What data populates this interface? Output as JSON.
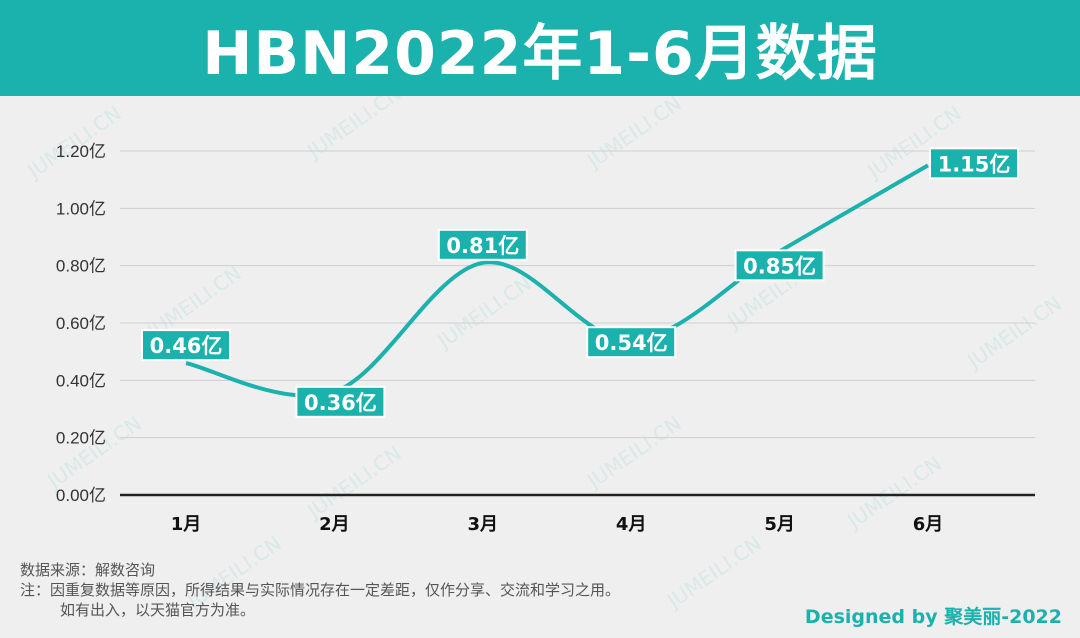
{
  "header": {
    "title": "HBN2022年1-6月数据"
  },
  "colors": {
    "accent": "#1bb1ad",
    "background": "#efefef",
    "axis": "#222222",
    "grid": "#cfcfcf"
  },
  "chart_data": {
    "type": "line",
    "title": "HBN2022年1-6月数据",
    "categories": [
      "1月",
      "2月",
      "3月",
      "4月",
      "5月",
      "6月"
    ],
    "series": [
      {
        "values": [
          0.46,
          0.36,
          0.81,
          0.54,
          0.85,
          1.15
        ]
      }
    ],
    "data_labels": [
      "0.46亿",
      "0.36亿",
      "0.81亿",
      "0.54亿",
      "0.85亿",
      "1.15亿"
    ],
    "y_ticks": [
      "0.00亿",
      "0.20亿",
      "0.40亿",
      "0.60亿",
      "0.80亿",
      "1.00亿",
      "1.20亿"
    ],
    "ylim": [
      0,
      1.2
    ],
    "xlabel": "",
    "ylabel": "",
    "grid": true,
    "smooth": true
  },
  "footer": {
    "source": "数据来源：解数咨询",
    "note_line1": "注：因重复数据等原因，所得结果与实际情况存在一定差距，仅作分享、交流和学习之用。",
    "note_line2": "如有出入，以天猫官方为准。",
    "credit": "Designed by 聚美丽-2022"
  },
  "watermark": {
    "text": "JUMEILI.CN"
  }
}
